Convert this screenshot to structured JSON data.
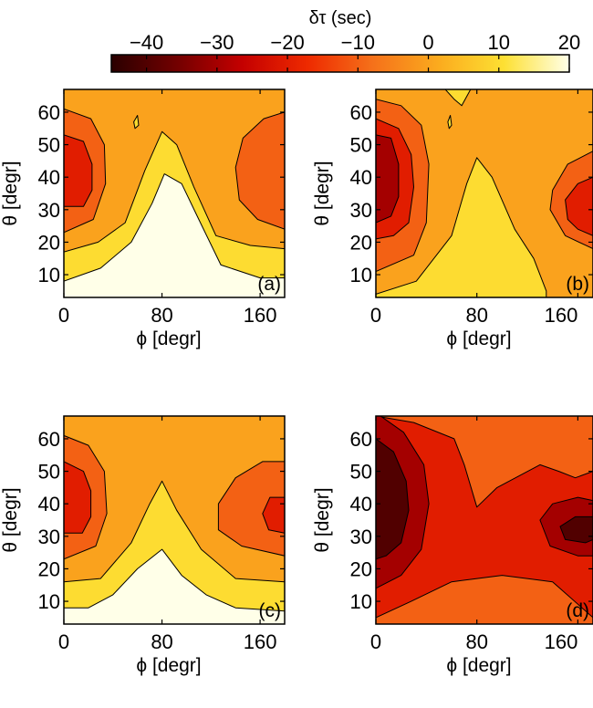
{
  "colorbar": {
    "label": "δτ (sec)",
    "range": [
      -45,
      20
    ],
    "ticks": [
      "−40",
      "−30",
      "−20",
      "−10",
      "0",
      "10",
      "20"
    ],
    "tick_values": [
      -40,
      -30,
      -20,
      -10,
      0,
      10,
      20
    ],
    "colormap": "hot",
    "colors": [
      "#2a0000",
      "#720000",
      "#c40000",
      "#ee2a00",
      "#f5711a",
      "#fbab1e",
      "#fde033",
      "#ffffe8"
    ]
  },
  "chart_data": [
    {
      "type": "contour",
      "panel_label": "(a)",
      "xlabel": "ϕ [degr]",
      "ylabel": "θ [degr]",
      "x_ticks": [
        "0",
        "80",
        "160"
      ],
      "x_tick_values": [
        0,
        80,
        160
      ],
      "xlim": [
        0,
        180
      ],
      "y_ticks": [
        "10",
        "20",
        "30",
        "40",
        "50",
        "60"
      ],
      "y_tick_values": [
        10,
        20,
        30,
        40,
        50,
        60
      ],
      "ylim": [
        3,
        67
      ],
      "levels": [
        -25,
        -15,
        -5,
        5,
        15
      ],
      "regions": [
        {
          "value": 0,
          "poly": [
            [
              0,
              67
            ],
            [
              180,
              67
            ],
            [
              180,
              3
            ],
            [
              0,
              3
            ]
          ]
        },
        {
          "value": -10,
          "poly": [
            [
              0,
              61
            ],
            [
              22,
              58
            ],
            [
              33,
              50
            ],
            [
              34,
              38
            ],
            [
              24,
              27
            ],
            [
              0,
              23
            ]
          ]
        },
        {
          "value": -20,
          "poly": [
            [
              0,
              53
            ],
            [
              16,
              51
            ],
            [
              23,
              44
            ],
            [
              23,
              36
            ],
            [
              16,
              31
            ],
            [
              0,
              31
            ]
          ]
        },
        {
          "value": -10,
          "poly": [
            [
              180,
              60
            ],
            [
              163,
              58
            ],
            [
              146,
              52
            ],
            [
              140,
              43
            ],
            [
              143,
              33
            ],
            [
              158,
              27
            ],
            [
              180,
              24
            ]
          ]
        },
        {
          "value": 10,
          "poly": [
            [
              0,
              17
            ],
            [
              28,
              20
            ],
            [
              50,
              26
            ],
            [
              66,
              42
            ],
            [
              80,
              54
            ],
            [
              92,
              50
            ],
            [
              106,
              37
            ],
            [
              124,
              22
            ],
            [
              152,
              19
            ],
            [
              180,
              18
            ],
            [
              180,
              3
            ],
            [
              0,
              3
            ]
          ]
        },
        {
          "value": 20,
          "poly": [
            [
              0,
              8
            ],
            [
              30,
              12
            ],
            [
              55,
              20
            ],
            [
              72,
              32
            ],
            [
              82,
              41
            ],
            [
              96,
              38
            ],
            [
              110,
              27
            ],
            [
              128,
              13
            ],
            [
              160,
              9
            ],
            [
              180,
              9
            ],
            [
              180,
              3
            ],
            [
              0,
              3
            ]
          ]
        },
        {
          "value": 10,
          "poly": [
            [
              57,
              57
            ],
            [
              60,
              59
            ],
            [
              61,
              56
            ],
            [
              58,
              55
            ]
          ]
        }
      ]
    },
    {
      "type": "contour",
      "panel_label": "(b)",
      "xlabel": "ϕ [degr]",
      "ylabel": "θ [degr]",
      "x_ticks": [
        "0",
        "80",
        "160"
      ],
      "x_tick_values": [
        0,
        80,
        160
      ],
      "xlim": [
        0,
        172
      ],
      "y_ticks": [
        "10",
        "20",
        "30",
        "40",
        "50",
        "60"
      ],
      "y_tick_values": [
        10,
        20,
        30,
        40,
        50,
        60
      ],
      "ylim": [
        3,
        67
      ],
      "levels": [
        -25,
        -15,
        -5,
        5,
        15
      ],
      "regions": [
        {
          "value": 0,
          "poly": [
            [
              0,
              67
            ],
            [
              172,
              67
            ],
            [
              172,
              3
            ],
            [
              0,
              3
            ]
          ]
        },
        {
          "value": -10,
          "poly": [
            [
              0,
              64
            ],
            [
              20,
              62
            ],
            [
              36,
              56
            ],
            [
              42,
              44
            ],
            [
              40,
              26
            ],
            [
              30,
              16
            ],
            [
              0,
              11
            ]
          ]
        },
        {
          "value": -20,
          "poly": [
            [
              0,
              58
            ],
            [
              18,
              55
            ],
            [
              28,
              47
            ],
            [
              30,
              37
            ],
            [
              26,
              26
            ],
            [
              14,
              22
            ],
            [
              0,
              21
            ]
          ]
        },
        {
          "value": -30,
          "poly": [
            [
              0,
              53
            ],
            [
              12,
              52
            ],
            [
              18,
              44
            ],
            [
              18,
              34
            ],
            [
              12,
              28
            ],
            [
              0,
              26
            ]
          ]
        },
        {
          "value": 10,
          "poly": [
            [
              0,
              4
            ],
            [
              32,
              8
            ],
            [
              60,
              22
            ],
            [
              72,
              38
            ],
            [
              80,
              46
            ],
            [
              92,
              40
            ],
            [
              110,
              24
            ],
            [
              125,
              15
            ],
            [
              135,
              5
            ],
            [
              135,
              3
            ],
            [
              0,
              3
            ]
          ]
        },
        {
          "value": -10,
          "poly": [
            [
              172,
              48
            ],
            [
              152,
              44
            ],
            [
              140,
              36
            ],
            [
              138,
              30
            ],
            [
              150,
              22
            ],
            [
              172,
              18
            ]
          ]
        },
        {
          "value": -20,
          "poly": [
            [
              172,
              40
            ],
            [
              160,
              38
            ],
            [
              150,
              33
            ],
            [
              152,
              27
            ],
            [
              160,
              24
            ],
            [
              172,
              22
            ]
          ]
        },
        {
          "value": 10,
          "poly": [
            [
              55,
              67
            ],
            [
              75,
              67
            ],
            [
              68,
              62
            ],
            [
              62,
              64
            ]
          ]
        },
        {
          "value": 10,
          "poly": [
            [
              57,
              57
            ],
            [
              59,
              59
            ],
            [
              60,
              56
            ],
            [
              58,
              55
            ]
          ]
        }
      ]
    },
    {
      "type": "contour",
      "panel_label": "(c)",
      "xlabel": "ϕ [degr]",
      "ylabel": "θ [degr]",
      "x_ticks": [
        "0",
        "80",
        "160"
      ],
      "x_tick_values": [
        0,
        80,
        160
      ],
      "xlim": [
        0,
        180
      ],
      "y_ticks": [
        "10",
        "20",
        "30",
        "40",
        "50",
        "60"
      ],
      "y_tick_values": [
        10,
        20,
        30,
        40,
        50,
        60
      ],
      "ylim": [
        3,
        67
      ],
      "levels": [
        -25,
        -15,
        -5,
        5,
        15
      ],
      "regions": [
        {
          "value": 0,
          "poly": [
            [
              0,
              67
            ],
            [
              180,
              67
            ],
            [
              180,
              3
            ],
            [
              0,
              3
            ]
          ]
        },
        {
          "value": -10,
          "poly": [
            [
              0,
              61
            ],
            [
              20,
              58
            ],
            [
              33,
              50
            ],
            [
              35,
              37
            ],
            [
              26,
              27
            ],
            [
              0,
              23
            ]
          ]
        },
        {
          "value": -20,
          "poly": [
            [
              0,
              53
            ],
            [
              16,
              50
            ],
            [
              22,
              44
            ],
            [
              22,
              36
            ],
            [
              15,
              31
            ],
            [
              0,
              31
            ]
          ]
        },
        {
          "value": -10,
          "poly": [
            [
              180,
              53
            ],
            [
              162,
              53
            ],
            [
              140,
              48
            ],
            [
              126,
              40
            ],
            [
              126,
              32
            ],
            [
              145,
              27
            ],
            [
              180,
              24
            ]
          ]
        },
        {
          "value": -20,
          "poly": [
            [
              180,
              42
            ],
            [
              168,
              42
            ],
            [
              162,
              37
            ],
            [
              167,
              32
            ],
            [
              180,
              31
            ]
          ]
        },
        {
          "value": 10,
          "poly": [
            [
              0,
              16
            ],
            [
              30,
              17
            ],
            [
              55,
              28
            ],
            [
              70,
              40
            ],
            [
              80,
              47
            ],
            [
              92,
              38
            ],
            [
              112,
              26
            ],
            [
              140,
              17
            ],
            [
              180,
              16
            ],
            [
              180,
              3
            ],
            [
              0,
              3
            ]
          ]
        },
        {
          "value": 20,
          "poly": [
            [
              0,
              8
            ],
            [
              20,
              8
            ],
            [
              40,
              12
            ],
            [
              60,
              20
            ],
            [
              80,
              26
            ],
            [
              96,
              18
            ],
            [
              116,
              12
            ],
            [
              140,
              8
            ],
            [
              180,
              7
            ],
            [
              180,
              3
            ],
            [
              0,
              3
            ]
          ]
        }
      ]
    },
    {
      "type": "contour",
      "panel_label": "(d)",
      "xlabel": "ϕ [degr]",
      "ylabel": "θ [degr]",
      "x_ticks": [
        "0",
        "80",
        "160"
      ],
      "x_tick_values": [
        0,
        80,
        160
      ],
      "xlim": [
        0,
        172
      ],
      "y_ticks": [
        "10",
        "20",
        "30",
        "40",
        "50",
        "60"
      ],
      "y_tick_values": [
        10,
        20,
        30,
        40,
        50,
        60
      ],
      "ylim": [
        3,
        67
      ],
      "levels": [
        -35,
        -25,
        -15,
        -5
      ],
      "regions": [
        {
          "value": -10,
          "poly": [
            [
              0,
              67
            ],
            [
              172,
              67
            ],
            [
              172,
              3
            ],
            [
              0,
              3
            ]
          ]
        },
        {
          "value": -20,
          "poly": [
            [
              0,
              67
            ],
            [
              30,
              65
            ],
            [
              62,
              60
            ],
            [
              70,
              52
            ],
            [
              80,
              39
            ],
            [
              96,
              45
            ],
            [
              130,
              52
            ],
            [
              145,
              50
            ],
            [
              158,
              48
            ],
            [
              172,
              50
            ],
            [
              172,
              5
            ],
            [
              140,
              16
            ],
            [
              100,
              18
            ],
            [
              60,
              16
            ],
            [
              28,
              10
            ],
            [
              0,
              5
            ]
          ]
        },
        {
          "value": -30,
          "poly": [
            [
              0,
              68
            ],
            [
              22,
              62
            ],
            [
              38,
              52
            ],
            [
              42,
              40
            ],
            [
              36,
              26
            ],
            [
              20,
              18
            ],
            [
              0,
              14
            ]
          ]
        },
        {
          "value": -40,
          "poly": [
            [
              0,
              60
            ],
            [
              14,
              56
            ],
            [
              24,
              47
            ],
            [
              26,
              38
            ],
            [
              20,
              28
            ],
            [
              8,
              24
            ],
            [
              0,
              23
            ]
          ]
        },
        {
          "value": -30,
          "poly": [
            [
              172,
              41
            ],
            [
              160,
              42
            ],
            [
              140,
              40
            ],
            [
              130,
              35
            ],
            [
              138,
              27
            ],
            [
              160,
              24
            ],
            [
              172,
              24
            ]
          ]
        },
        {
          "value": -40,
          "poly": [
            [
              172,
              36
            ],
            [
              158,
              36
            ],
            [
              146,
              33
            ],
            [
              150,
              29
            ],
            [
              166,
              28
            ],
            [
              172,
              29
            ]
          ]
        }
      ]
    }
  ],
  "chart_data_note": ""
}
